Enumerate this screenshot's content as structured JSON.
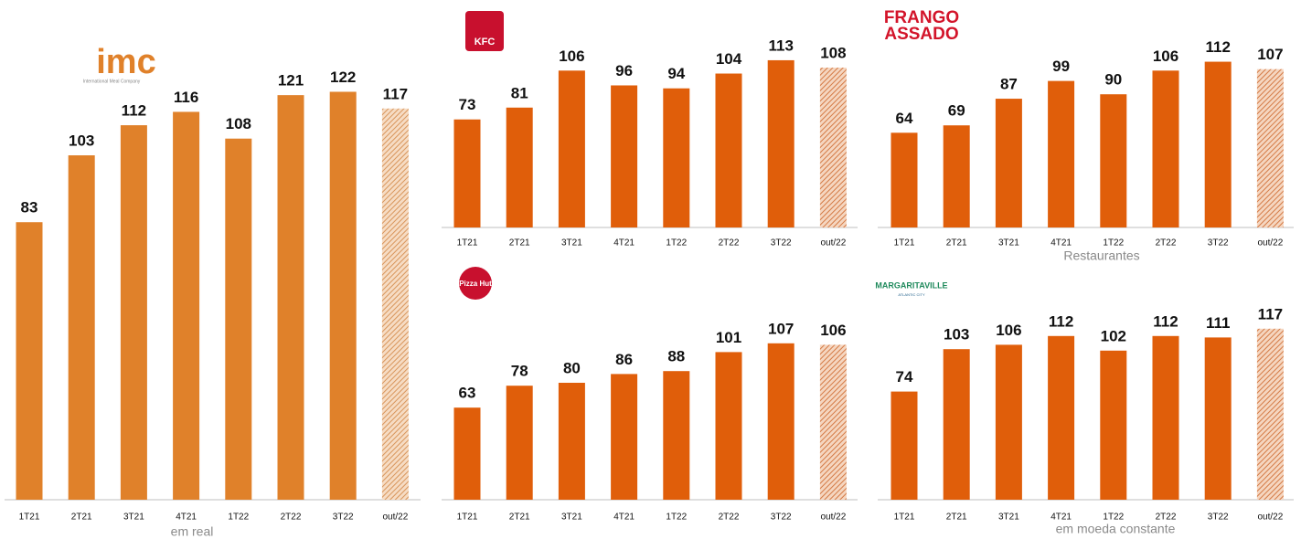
{
  "chart_data": [
    {
      "type": "bar",
      "logo": [
        "imc",
        "International Meal Company"
      ],
      "note": "em real",
      "color": "#e0812a",
      "hatch_last": true,
      "categories": [
        "1T21",
        "2T21",
        "3T21",
        "4T21",
        "1T22",
        "2T22",
        "3T22",
        "out/22"
      ],
      "values": [
        83,
        103,
        112,
        116,
        108,
        121,
        122,
        117
      ]
    },
    {
      "type": "bar",
      "logo": [
        "KFC"
      ],
      "color": "#e05e0a",
      "hatch_last": true,
      "categories": [
        "1T21",
        "2T21",
        "3T21",
        "4T21",
        "1T22",
        "2T22",
        "3T22",
        "out/22"
      ],
      "values": [
        73,
        81,
        106,
        96,
        94,
        104,
        113,
        108
      ]
    },
    {
      "type": "bar",
      "logo": [
        "FRANGO",
        "ASSADO"
      ],
      "note": "Restaurantes",
      "color": "#e05e0a",
      "hatch_last": true,
      "categories": [
        "1T21",
        "2T21",
        "3T21",
        "4T21",
        "1T22",
        "2T22",
        "3T22",
        "out/22"
      ],
      "values": [
        64,
        69,
        87,
        99,
        90,
        106,
        112,
        107
      ]
    },
    {
      "type": "bar",
      "logo": [
        "Pizza Hut"
      ],
      "color": "#e05e0a",
      "hatch_last": true,
      "categories": [
        "1T21",
        "2T21",
        "3T21",
        "4T21",
        "1T22",
        "2T22",
        "3T22",
        "out/22"
      ],
      "values": [
        63,
        78,
        80,
        86,
        88,
        101,
        107,
        106
      ]
    },
    {
      "type": "bar",
      "logo": [
        "MARGARITAVILLE",
        "ATLANTIC CITY"
      ],
      "note": "em moeda constante",
      "color": "#e05e0a",
      "hatch_last": true,
      "categories": [
        "1T21",
        "2T21",
        "3T21",
        "4T21",
        "1T22",
        "2T22",
        "3T22",
        "out/22"
      ],
      "values": [
        74,
        103,
        106,
        112,
        102,
        112,
        111,
        117
      ]
    }
  ]
}
